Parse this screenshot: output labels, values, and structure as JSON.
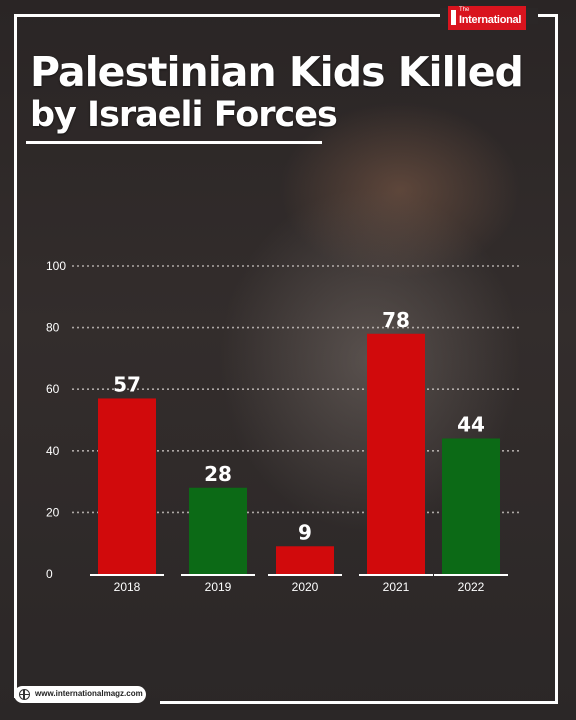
{
  "brand": {
    "the": "The",
    "name": "International"
  },
  "title": {
    "line1": "Palestinian Kids Killed",
    "line2": "by Israeli Forces"
  },
  "footer": {
    "url": "www.internationalmagz.com"
  },
  "colors": {
    "red": "#d10a0c",
    "green": "#0c6a16"
  },
  "chart_data": {
    "type": "bar",
    "title": "Palestinian Kids Killed by Israeli Forces",
    "categories": [
      "2018",
      "2019",
      "2020",
      "2021",
      "2022"
    ],
    "values": [
      57,
      28,
      9,
      78,
      44
    ],
    "bar_colors": [
      "#d10a0c",
      "#0c6a16",
      "#d10a0c",
      "#d10a0c",
      "#0c6a16"
    ],
    "y_ticks": [
      0,
      20,
      40,
      60,
      80,
      100
    ],
    "ylim": [
      0,
      100
    ],
    "grid": true,
    "xlabel": "",
    "ylabel": ""
  }
}
